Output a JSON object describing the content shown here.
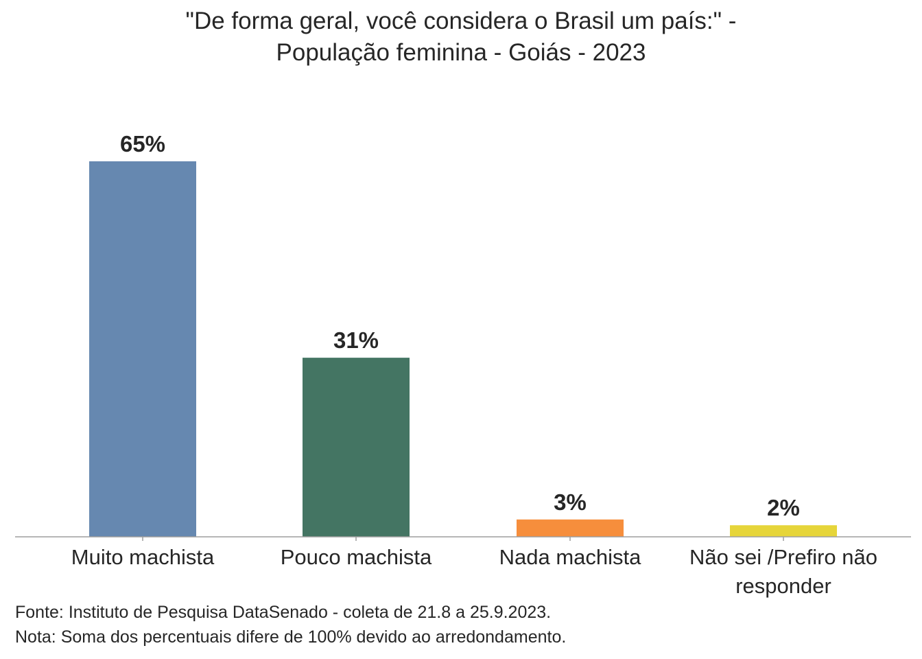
{
  "title": {
    "line1": "\"De forma geral, você considera o Brasil um país:\" -",
    "line2": "População feminina - Goiás - 2023"
  },
  "chart_data": {
    "type": "bar",
    "categories": [
      [
        "Muito machista"
      ],
      [
        "Pouco machista"
      ],
      [
        "Nada machista"
      ],
      [
        "Não sei /Prefiro não",
        "responder"
      ]
    ],
    "values": [
      65,
      31,
      3,
      2
    ],
    "data_labels": [
      "65%",
      "31%",
      "3%",
      "2%"
    ],
    "colors": [
      "#6688b0",
      "#447563",
      "#f68e3c",
      "#e6d53a"
    ],
    "ylim": [
      0,
      65
    ],
    "grid": false,
    "legend": "none"
  },
  "notes": {
    "source": "Fonte: Instituto de Pesquisa DataSenado - coleta de 21.8 a 25.9.2023.",
    "note": "Nota: Soma dos percentuais difere de 100% devido ao arredondamento."
  }
}
